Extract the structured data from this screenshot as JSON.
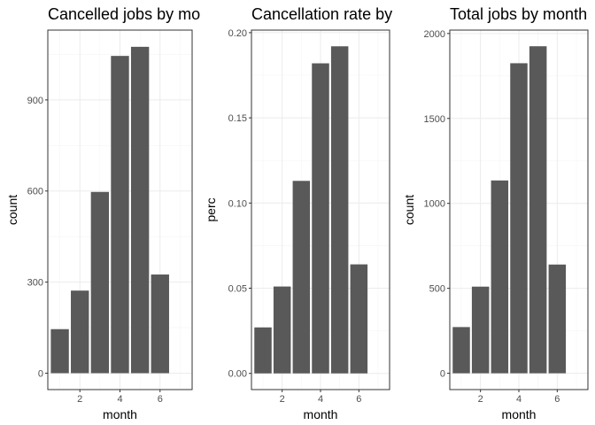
{
  "chart_data": [
    {
      "type": "bar",
      "title": "Cancelled jobs by mo",
      "xlabel": "month",
      "ylabel": "count",
      "x": [
        1,
        2,
        3,
        4,
        5,
        6
      ],
      "values": [
        145,
        272,
        597,
        1045,
        1075,
        325
      ],
      "xlim": [
        0.4,
        7.6
      ],
      "ylim": [
        -54,
        1130
      ],
      "xticks": [
        2,
        4,
        6
      ],
      "xtick_labels": [
        "2",
        "4",
        "6"
      ],
      "yticks": [
        0,
        300,
        600,
        900
      ],
      "ytick_labels": [
        "0",
        "300",
        "600",
        "900"
      ],
      "grid": true,
      "bar_color": "#595959"
    },
    {
      "type": "bar",
      "title": "Cancellation rate by",
      "xlabel": "month",
      "ylabel": "perc",
      "x": [
        1,
        2,
        3,
        4,
        5,
        6
      ],
      "values": [
        0.027,
        0.051,
        0.113,
        0.182,
        0.192,
        0.064
      ],
      "xlim": [
        0.4,
        7.6
      ],
      "ylim": [
        -0.0095,
        0.2015
      ],
      "xticks": [
        2,
        4,
        6
      ],
      "xtick_labels": [
        "2",
        "4",
        "6"
      ],
      "yticks": [
        0,
        0.05,
        0.1,
        0.15,
        0.2
      ],
      "ytick_labels": [
        "0.00",
        "0.05",
        "0.10",
        "0.15",
        "0.20"
      ],
      "grid": true,
      "bar_color": "#595959"
    },
    {
      "type": "bar",
      "title": "Total jobs by month",
      "xlabel": "month",
      "ylabel": "count",
      "x": [
        1,
        2,
        3,
        4,
        5,
        6
      ],
      "values": [
        272,
        510,
        1135,
        1825,
        1925,
        640
      ],
      "xlim": [
        0.4,
        7.6
      ],
      "ylim": [
        -96,
        2020
      ],
      "xticks": [
        2,
        4,
        6
      ],
      "xtick_labels": [
        "2",
        "4",
        "6"
      ],
      "yticks": [
        0,
        500,
        1000,
        1500,
        2000
      ],
      "ytick_labels": [
        "0",
        "500",
        "1000",
        "1500",
        "2000"
      ],
      "grid": true,
      "bar_color": "#595959"
    }
  ]
}
